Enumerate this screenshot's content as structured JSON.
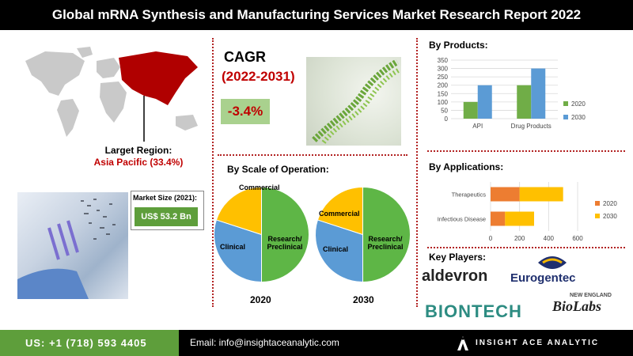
{
  "title": "Global mRNA Synthesis and Manufacturing Services Market Research Report 2022",
  "region": {
    "label": "Larget Region:",
    "value": "Asia Pacific (33.4%)"
  },
  "market_size": {
    "label": "Market Size (2021):",
    "value": "US$ 53.2 Bn"
  },
  "cagr": {
    "title": "CAGR",
    "period": "(2022-2031)",
    "value": "-3.4%"
  },
  "sections": {
    "scale": "By  Scale of Operation:",
    "products": "By  Products:",
    "applications": "By Applications:",
    "players": "Key Players:"
  },
  "key_players": [
    "aldevron",
    "Eurogentec",
    "BIONTECH",
    "NEW ENGLAND",
    "BioLabs"
  ],
  "footer": {
    "phone": "US: +1 (718) 593 4405",
    "email": "Email: info@insightaceanalytic.com",
    "brand": "INSIGHT ACE ANALYTIC"
  },
  "colors": {
    "green": "#5e9e3b",
    "red": "#c00000",
    "blue": "#5b9bd5",
    "yellow": "#ffc000",
    "orange": "#ed7d31",
    "pie_green": "#5eb646",
    "bar_green": "#70ad47"
  },
  "chart_data": [
    {
      "type": "pie",
      "year": "2020",
      "labels": [
        "Research/ Preclinical",
        "Clinical",
        "Commercial"
      ],
      "values": [
        50,
        30,
        20
      ]
    },
    {
      "type": "pie",
      "year": "2030",
      "labels": [
        "Research/ Preclinical",
        "Clinical",
        "Commercial"
      ],
      "values": [
        50,
        30,
        20
      ]
    },
    {
      "type": "bar",
      "title": "By  Products:",
      "categories": [
        "API",
        "Drug Products"
      ],
      "series": [
        {
          "name": "2020",
          "values": [
            100,
            200
          ]
        },
        {
          "name": "2030",
          "values": [
            200,
            300
          ]
        }
      ],
      "ylim": [
        0,
        350
      ],
      "yticks": [
        0,
        50,
        100,
        150,
        200,
        250,
        300,
        350
      ],
      "legend": "right"
    },
    {
      "type": "bar",
      "orientation": "horizontal-stacked",
      "title": "By Applications:",
      "categories": [
        "Therapeutics",
        "Infectious Disease"
      ],
      "series": [
        {
          "name": "2020",
          "values": [
            200,
            100
          ]
        },
        {
          "name": "2030",
          "values": [
            300,
            200
          ]
        }
      ],
      "xlim": [
        0,
        600
      ],
      "xticks": [
        0,
        200,
        400,
        600
      ],
      "legend": "right"
    }
  ]
}
